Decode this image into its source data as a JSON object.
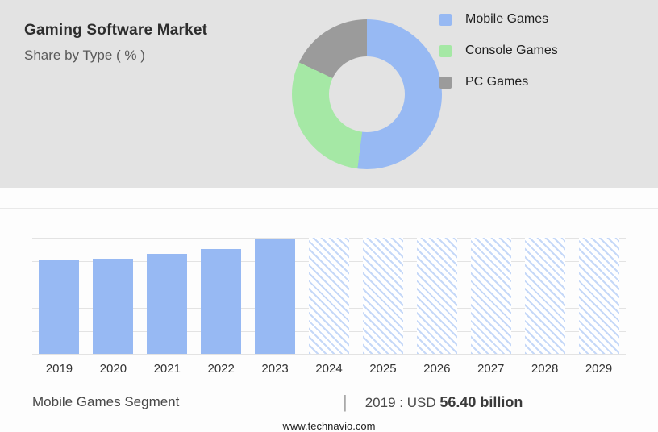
{
  "header": {
    "title": "Gaming Software Market",
    "subtitle": "Share by Type ( % )"
  },
  "colors": {
    "mobile_blue": "#97b9f3",
    "console_green": "#a5e8a5",
    "pc_gray": "#9b9b9b",
    "header_bg": "#e3e3e3",
    "hatch_blue": "#c5d8f8",
    "gridline": "#e3e3e3"
  },
  "chart_data": [
    {
      "type": "pie",
      "subtype": "donut",
      "title": "Share by Type ( % )",
      "labels": [
        "Mobile Games",
        "Console Games",
        "PC Games"
      ],
      "values": [
        52,
        30,
        18
      ],
      "colors": [
        "#97b9f3",
        "#a5e8a5",
        "#9b9b9b"
      ],
      "legend_position": "right"
    },
    {
      "type": "bar",
      "title": "Mobile Games Segment",
      "categories": [
        "2019",
        "2020",
        "2021",
        "2022",
        "2023",
        "2024",
        "2025",
        "2026",
        "2027",
        "2028",
        "2029"
      ],
      "heights_pct": [
        81,
        82,
        86,
        90,
        99,
        100,
        100,
        100,
        100,
        100,
        100
      ],
      "styles": [
        "solid",
        "solid",
        "solid",
        "solid",
        "solid",
        "hatch",
        "hatch",
        "hatch",
        "hatch",
        "hatch",
        "hatch"
      ],
      "xlabel": "",
      "ylabel": "",
      "gridlines": true
    }
  ],
  "footer": {
    "segment_label": "Mobile Games Segment",
    "separator": "|",
    "value_text": "2019 : USD ",
    "value_bold": "56.40 billion",
    "website": "www.technavio.com"
  }
}
